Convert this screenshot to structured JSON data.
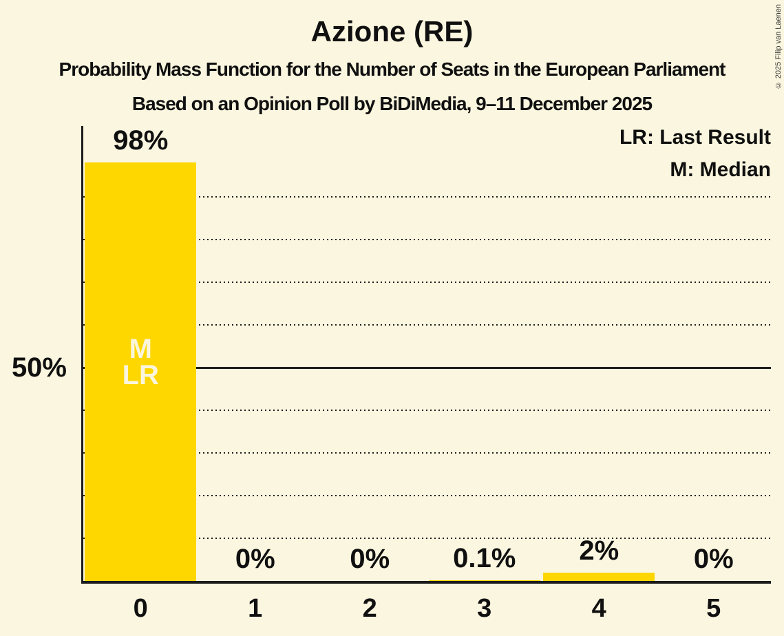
{
  "header": {
    "title": "Azione (RE)",
    "subtitle": "Probability Mass Function for the Number of Seats in the European Parliament",
    "source_line": "Based on an Opinion Poll by BiDiMedia, 9–11 December 2025",
    "copyright": "© 2025 Filip van Laenen"
  },
  "legend": {
    "last_result": "LR: Last Result",
    "median": "M: Median"
  },
  "colors": {
    "background": "#FBF6DF",
    "bar": "#FFD700",
    "text": "#101010",
    "grid": "#1C1C1C",
    "bar_label_text": "#FAF5DC"
  },
  "chart_data": {
    "type": "bar",
    "title": "Azione (RE)",
    "categories": [
      "0",
      "1",
      "2",
      "3",
      "4",
      "5"
    ],
    "values": [
      98,
      0,
      0,
      0.1,
      2,
      0
    ],
    "value_labels": [
      "98%",
      "0%",
      "0%",
      "0.1%",
      "2%",
      "0%"
    ],
    "ylim": [
      0,
      100
    ],
    "y_axis_label": "50%",
    "y_gridline_interval_pct": 10,
    "y_solid_gridline_pct": 50,
    "grid_style": "dotted horizontal lines, solid line at 50%",
    "legend_position": "top-right",
    "median_seats": "0",
    "last_result_seats": "0",
    "bar_annotations": [
      {
        "category": "0",
        "lines": [
          "M",
          "LR"
        ]
      }
    ]
  }
}
